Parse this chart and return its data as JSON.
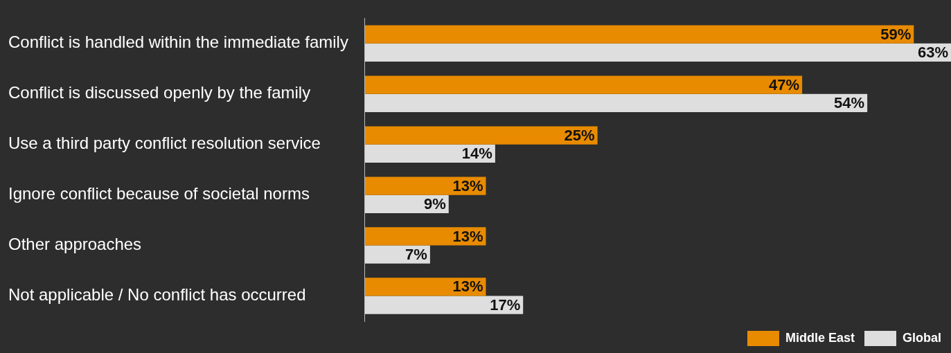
{
  "chart_data": {
    "type": "bar",
    "orientation": "horizontal",
    "categories": [
      "Conflict is handled within the immediate family",
      "Conflict is discussed openly by the family",
      "Use a third party conflict resolution service",
      "Ignore conflict because of societal norms",
      "Other approaches",
      "Not applicable / No conflict has occurred"
    ],
    "series": [
      {
        "name": "Middle East",
        "color": "#e88b00",
        "values": [
          59,
          47,
          25,
          13,
          13,
          13
        ],
        "value_labels": [
          "59%",
          "47%",
          "25%",
          "13%",
          "13%",
          "13%"
        ]
      },
      {
        "name": "Global",
        "color": "#dedede",
        "values": [
          63,
          54,
          14,
          9,
          7,
          17
        ],
        "value_labels": [
          "63%",
          "54%",
          "14%",
          "9%",
          "7%",
          "17%"
        ]
      }
    ],
    "legend": "bottom right",
    "tick_labels": "y"
  }
}
